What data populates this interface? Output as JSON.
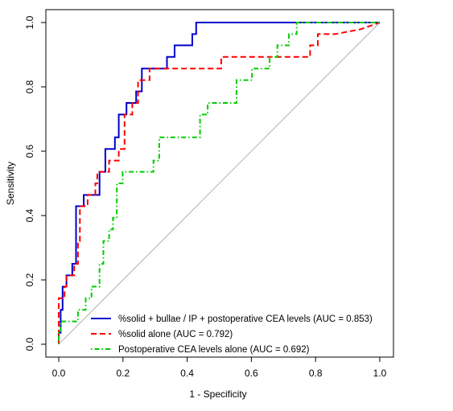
{
  "chart_data": {
    "type": "line",
    "title": "",
    "xlabel": "1 - Specificity",
    "ylabel": "Sensitivity",
    "xlim": [
      0,
      1
    ],
    "ylim": [
      0,
      1
    ],
    "xticks": [
      "0.0",
      "0.2",
      "0.4",
      "0.6",
      "0.8",
      "1.0"
    ],
    "yticks": [
      "0.0",
      "0.2",
      "0.4",
      "0.6",
      "0.8",
      "1.0"
    ],
    "grid": false,
    "reference_line": "diagonal",
    "legend_position": "bottom-right",
    "series": [
      {
        "name": "%solid + bullae / IP + postoperative CEA levels (AUC = 0.853)",
        "color": "#0000cc",
        "style": "solid",
        "points": [
          [
            0,
            0
          ],
          [
            0,
            0.036
          ],
          [
            0.006,
            0.036
          ],
          [
            0.006,
            0.107
          ],
          [
            0.012,
            0.107
          ],
          [
            0.012,
            0.179
          ],
          [
            0.024,
            0.179
          ],
          [
            0.024,
            0.214
          ],
          [
            0.042,
            0.214
          ],
          [
            0.042,
            0.25
          ],
          [
            0.054,
            0.25
          ],
          [
            0.054,
            0.429
          ],
          [
            0.078,
            0.429
          ],
          [
            0.078,
            0.464
          ],
          [
            0.102,
            0.464
          ],
          [
            0.102,
            0.464
          ],
          [
            0.127,
            0.464
          ],
          [
            0.127,
            0.536
          ],
          [
            0.145,
            0.536
          ],
          [
            0.145,
            0.607
          ],
          [
            0.175,
            0.607
          ],
          [
            0.175,
            0.643
          ],
          [
            0.187,
            0.643
          ],
          [
            0.187,
            0.714
          ],
          [
            0.211,
            0.714
          ],
          [
            0.211,
            0.75
          ],
          [
            0.241,
            0.75
          ],
          [
            0.241,
            0.786
          ],
          [
            0.259,
            0.786
          ],
          [
            0.259,
            0.857
          ],
          [
            0.337,
            0.857
          ],
          [
            0.337,
            0.893
          ],
          [
            0.361,
            0.893
          ],
          [
            0.361,
            0.929
          ],
          [
            0.416,
            0.929
          ],
          [
            0.416,
            0.964
          ],
          [
            0.428,
            0.964
          ],
          [
            0.428,
            1.0
          ],
          [
            0.747,
            1.0
          ],
          [
            1.0,
            1.0
          ]
        ]
      },
      {
        "name": "%solid alone (AUC = 0.792)",
        "color": "#ff0000",
        "style": "dashed",
        "points": [
          [
            0,
            0
          ],
          [
            0,
            0.143
          ],
          [
            0.018,
            0.143
          ],
          [
            0.018,
            0.179
          ],
          [
            0.024,
            0.179
          ],
          [
            0.024,
            0.214
          ],
          [
            0.048,
            0.214
          ],
          [
            0.048,
            0.25
          ],
          [
            0.06,
            0.25
          ],
          [
            0.06,
            0.321
          ],
          [
            0.066,
            0.321
          ],
          [
            0.066,
            0.429
          ],
          [
            0.09,
            0.429
          ],
          [
            0.09,
            0.464
          ],
          [
            0.114,
            0.464
          ],
          [
            0.114,
            0.5
          ],
          [
            0.12,
            0.5
          ],
          [
            0.12,
            0.536
          ],
          [
            0.157,
            0.536
          ],
          [
            0.157,
            0.571
          ],
          [
            0.187,
            0.571
          ],
          [
            0.187,
            0.607
          ],
          [
            0.205,
            0.607
          ],
          [
            0.205,
            0.714
          ],
          [
            0.229,
            0.714
          ],
          [
            0.229,
            0.75
          ],
          [
            0.247,
            0.75
          ],
          [
            0.247,
            0.821
          ],
          [
            0.283,
            0.821
          ],
          [
            0.283,
            0.857
          ],
          [
            0.506,
            0.857
          ],
          [
            0.506,
            0.893
          ],
          [
            0.783,
            0.893
          ],
          [
            0.783,
            0.929
          ],
          [
            0.807,
            0.929
          ],
          [
            0.807,
            0.964
          ],
          [
            0.861,
            0.964
          ],
          [
            0.861,
            0.964
          ],
          [
            0.94,
            0.979
          ],
          [
            1.0,
            1.0
          ]
        ]
      },
      {
        "name": "Postoperative CEA levels alone (AUC = 0.692)",
        "color": "#00cc00",
        "style": "dotdash",
        "points": [
          [
            0,
            0
          ],
          [
            0,
            0.036
          ],
          [
            0.006,
            0.036
          ],
          [
            0.006,
            0.071
          ],
          [
            0.06,
            0.071
          ],
          [
            0.06,
            0.107
          ],
          [
            0.084,
            0.107
          ],
          [
            0.084,
            0.143
          ],
          [
            0.102,
            0.143
          ],
          [
            0.102,
            0.179
          ],
          [
            0.127,
            0.179
          ],
          [
            0.127,
            0.25
          ],
          [
            0.139,
            0.25
          ],
          [
            0.139,
            0.321
          ],
          [
            0.157,
            0.321
          ],
          [
            0.157,
            0.357
          ],
          [
            0.169,
            0.357
          ],
          [
            0.169,
            0.393
          ],
          [
            0.181,
            0.393
          ],
          [
            0.181,
            0.5
          ],
          [
            0.199,
            0.5
          ],
          [
            0.199,
            0.536
          ],
          [
            0.295,
            0.536
          ],
          [
            0.295,
            0.571
          ],
          [
            0.313,
            0.571
          ],
          [
            0.313,
            0.643
          ],
          [
            0.44,
            0.643
          ],
          [
            0.44,
            0.714
          ],
          [
            0.464,
            0.714
          ],
          [
            0.464,
            0.75
          ],
          [
            0.554,
            0.75
          ],
          [
            0.554,
            0.821
          ],
          [
            0.602,
            0.821
          ],
          [
            0.602,
            0.857
          ],
          [
            0.657,
            0.857
          ],
          [
            0.657,
            0.893
          ],
          [
            0.681,
            0.893
          ],
          [
            0.681,
            0.929
          ],
          [
            0.717,
            0.929
          ],
          [
            0.717,
            0.964
          ],
          [
            0.741,
            0.964
          ],
          [
            0.741,
            1.0
          ],
          [
            1.0,
            1.0
          ]
        ]
      }
    ]
  }
}
